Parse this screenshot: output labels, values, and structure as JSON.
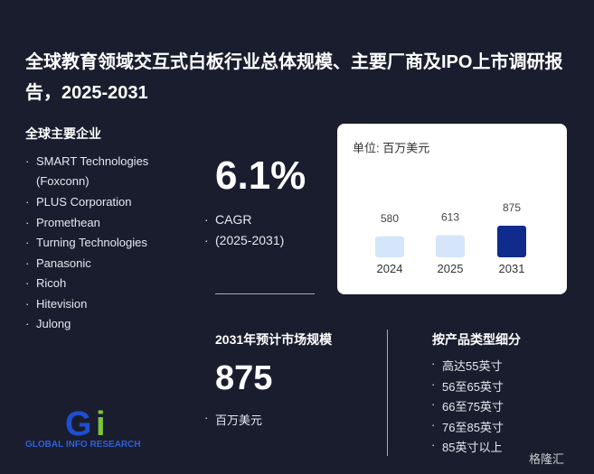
{
  "header": {
    "title": "全球教育领域交互式白板行业总体规模、主要厂商及IPO上市调研报告，2025-2031"
  },
  "companies": {
    "heading": "全球主要企业",
    "items": [
      "SMART Technologies (Foxconn)",
      "PLUS Corporation",
      "Promethean",
      "Turning Technologies",
      "Panasonic",
      "Ricoh",
      "Hitevision",
      "Julong"
    ]
  },
  "cagr": {
    "value": "6.1%",
    "label": "CAGR",
    "period": "(2025-2031)"
  },
  "market": {
    "heading": "2031年预计市场规模",
    "value": "875",
    "unit": "百万美元"
  },
  "segments": {
    "heading": "按产品类型细分",
    "items": [
      "高达55英寸",
      "56至65英寸",
      "66至75英寸",
      "76至85英寸",
      "85英寸以上"
    ]
  },
  "branding": {
    "logo_text": "GLOBAL INFO RESEARCH",
    "watermark": "格隆汇"
  },
  "chart_data": {
    "type": "bar",
    "subtitle": "单位: 百万美元",
    "categories": [
      "2024",
      "2025",
      "2031"
    ],
    "values": [
      580,
      613,
      875
    ],
    "colors": [
      "#d5e6fa",
      "#d5e6fa",
      "#0f2b8c"
    ]
  }
}
